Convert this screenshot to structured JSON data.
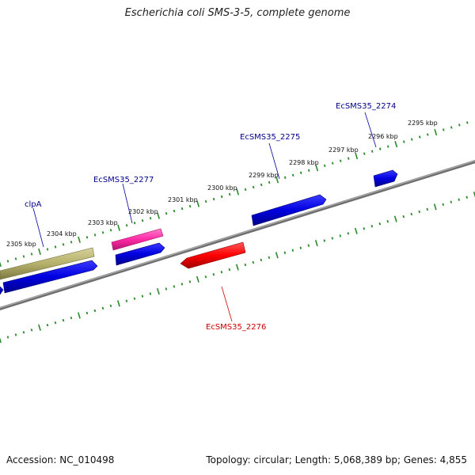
{
  "title": "Escherichia coli SMS-3-5, complete genome",
  "footer": {
    "accession": "Accession: NC_010498",
    "summary": "Topology: circular; Length: 5,068,389 bp; Genes: 4,855"
  },
  "colors": {
    "forward_gene": "#0000e0",
    "reverse_gene": "#ff0000",
    "selected_gene": "#ff2aa5",
    "other_gene": "#b5b06a",
    "backbone": "#888888",
    "tick": "#2a8a2a",
    "label_blue": "#00008b",
    "label_red": "#cc0000"
  },
  "kbp_ticks": [
    {
      "label": "2295 kbp",
      "kbp": 2295
    },
    {
      "label": "2296 kbp",
      "kbp": 2296
    },
    {
      "label": "2297 kbp",
      "kbp": 2297
    },
    {
      "label": "2298 kbp",
      "kbp": 2298
    },
    {
      "label": "2299 kbp",
      "kbp": 2299
    },
    {
      "label": "2300 kbp",
      "kbp": 2300
    },
    {
      "label": "2301 kbp",
      "kbp": 2301
    },
    {
      "label": "2302 kbp",
      "kbp": 2302
    },
    {
      "label": "2303 kbp",
      "kbp": 2303
    },
    {
      "label": "2304 kbp",
      "kbp": 2304
    },
    {
      "label": "2305 kbp",
      "kbp": 2305
    }
  ],
  "genes": [
    {
      "label": "EcSMS35_2274"
    },
    {
      "label": "EcSMS35_2275"
    },
    {
      "label": "EcSMS35_2277"
    },
    {
      "label": "clpA"
    },
    {
      "label": "EcSMS35_2276"
    }
  ]
}
